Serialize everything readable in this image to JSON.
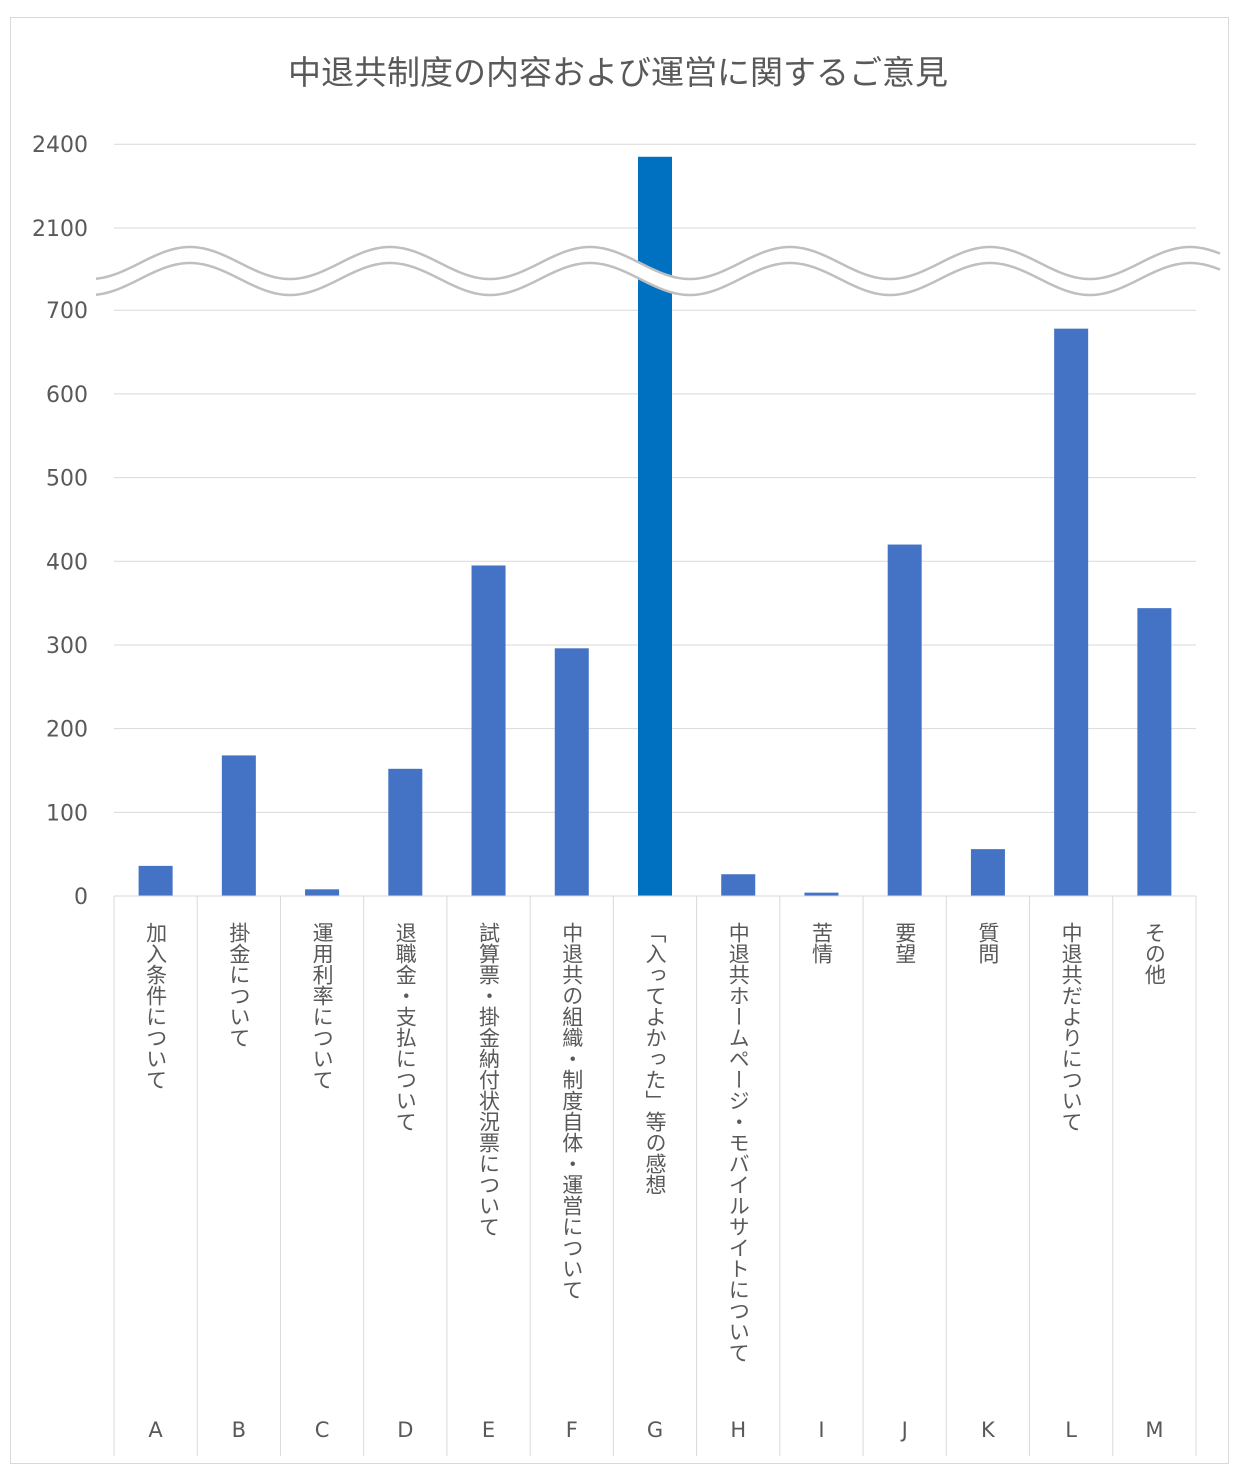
{
  "chart_data": {
    "type": "bar",
    "title": "中退共制度の内容および運営に関するご意見",
    "xlabel": "",
    "ylabel": "",
    "axis_break": true,
    "y_ticks": [
      "0",
      "100",
      "200",
      "300",
      "400",
      "500",
      "600",
      "700",
      "2100",
      "2400"
    ],
    "categories": [
      "A",
      "B",
      "C",
      "D",
      "E",
      "F",
      "G",
      "H",
      "I",
      "J",
      "K",
      "L",
      "M"
    ],
    "category_descriptions": [
      "加入条件について",
      "掛金について",
      "運用利率について",
      "退職金・支払について",
      "試算票・掛金納付状況票について",
      "中退共の組織・制度自体・運営について",
      "「入ってよかった」等の感想",
      "中退共ホームページ・モバイルサイトについて",
      "苦情",
      "要望",
      "質問",
      "中退共だよりについて",
      "その他"
    ],
    "values": [
      36,
      168,
      8,
      152,
      395,
      296,
      2355,
      26,
      4,
      420,
      56,
      678,
      344
    ],
    "colors": {
      "bar": "#4472c4",
      "highlight_bar": "#0070c0",
      "grid": "#d9d9d9",
      "text": "#595959",
      "break_line": "#bfbfbf"
    }
  }
}
